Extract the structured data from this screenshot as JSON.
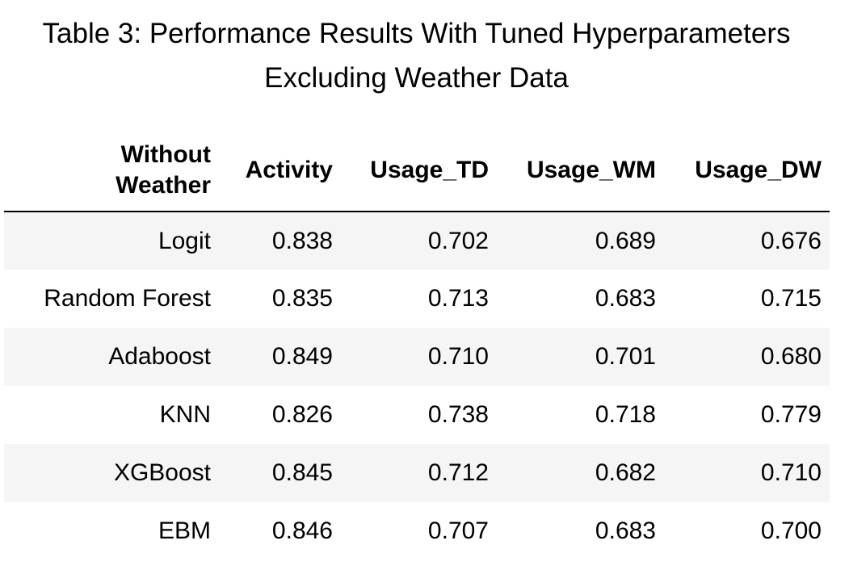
{
  "caption": {
    "line1": "Table 3: Performance Results With Tuned Hyperparameters",
    "line2": "Excluding Weather Data"
  },
  "table": {
    "header": {
      "index_label_line1": "Without",
      "index_label_line2": "Weather",
      "columns": [
        "Activity",
        "Usage_TD",
        "Usage_WM",
        "Usage_DW"
      ]
    },
    "rows": [
      {
        "model": "Logit",
        "values": [
          "0.838",
          "0.702",
          "0.689",
          "0.676"
        ]
      },
      {
        "model": "Random Forest",
        "values": [
          "0.835",
          "0.713",
          "0.683",
          "0.715"
        ]
      },
      {
        "model": "Adaboost",
        "values": [
          "0.849",
          "0.710",
          "0.701",
          "0.680"
        ]
      },
      {
        "model": "KNN",
        "values": [
          "0.826",
          "0.738",
          "0.718",
          "0.779"
        ]
      },
      {
        "model": "XGBoost",
        "values": [
          "0.845",
          "0.712",
          "0.682",
          "0.710"
        ]
      },
      {
        "model": "EBM",
        "values": [
          "0.846",
          "0.707",
          "0.683",
          "0.700"
        ]
      }
    ]
  },
  "colors": {
    "stripe": "#f5f5f5",
    "rule": "#000000",
    "text": "#000000"
  }
}
